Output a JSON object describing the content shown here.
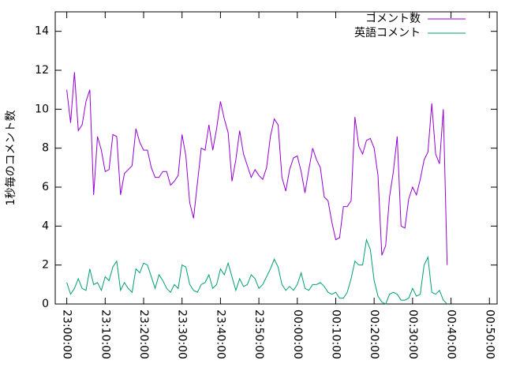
{
  "chart_data": {
    "type": "line",
    "ylabel": "1秒毎のコメント数",
    "x": [
      "23:00:00",
      "23:01:00",
      "23:02:00",
      "23:03:00",
      "23:04:00",
      "23:05:00",
      "23:06:00",
      "23:07:00",
      "23:08:00",
      "23:09:00",
      "23:10:00",
      "23:11:00",
      "23:12:00",
      "23:13:00",
      "23:14:00",
      "23:15:00",
      "23:16:00",
      "23:17:00",
      "23:18:00",
      "23:19:00",
      "23:20:00",
      "23:21:00",
      "23:22:00",
      "23:23:00",
      "23:24:00",
      "23:25:00",
      "23:26:00",
      "23:27:00",
      "23:28:00",
      "23:29:00",
      "23:30:00",
      "23:31:00",
      "23:32:00",
      "23:33:00",
      "23:34:00",
      "23:35:00",
      "23:36:00",
      "23:37:00",
      "23:38:00",
      "23:39:00",
      "23:40:00",
      "23:41:00",
      "23:42:00",
      "23:43:00",
      "23:44:00",
      "23:45:00",
      "23:46:00",
      "23:47:00",
      "23:48:00",
      "23:49:00",
      "23:50:00",
      "23:51:00",
      "23:52:00",
      "23:53:00",
      "23:54:00",
      "23:55:00",
      "23:56:00",
      "23:57:00",
      "23:58:00",
      "23:59:00",
      "00:00:00",
      "00:01:00",
      "00:02:00",
      "00:03:00",
      "00:04:00",
      "00:05:00",
      "00:06:00",
      "00:07:00",
      "00:08:00",
      "00:09:00",
      "00:10:00",
      "00:11:00",
      "00:12:00",
      "00:13:00",
      "00:14:00",
      "00:15:00",
      "00:16:00",
      "00:17:00",
      "00:18:00",
      "00:19:00",
      "00:20:00",
      "00:21:00",
      "00:22:00",
      "00:23:00",
      "00:24:00",
      "00:25:00",
      "00:26:00",
      "00:27:00",
      "00:28:00",
      "00:29:00",
      "00:30:00",
      "00:31:00",
      "00:32:00",
      "00:33:00",
      "00:34:00",
      "00:35:00",
      "00:36:00",
      "00:37:00",
      "00:38:00",
      "00:39:00"
    ],
    "series": [
      {
        "name": "コメント数",
        "color": "#9400d3",
        "values": [
          11,
          9.3,
          11.9,
          8.9,
          9.2,
          10.4,
          11,
          5.6,
          8.6,
          7.9,
          6.8,
          6.9,
          8.7,
          8.6,
          5.6,
          6.7,
          6.9,
          7.1,
          9.0,
          8.3,
          7.9,
          7.9,
          7.0,
          6.5,
          6.5,
          6.8,
          6.8,
          6.1,
          6.3,
          6.6,
          8.7,
          7.6,
          5.2,
          4.4,
          6.2,
          8.0,
          7.9,
          9.2,
          7.9,
          9.0,
          10.4,
          9.5,
          8.8,
          6.3,
          7.4,
          8.9,
          7.7,
          7.1,
          6.5,
          6.9,
          6.6,
          6.4,
          7.0,
          8.6,
          9.5,
          9.2,
          6.5,
          5.8,
          6.9,
          7.5,
          7.6,
          6.8,
          5.7,
          6.9,
          8.0,
          7.4,
          7.0,
          5.5,
          5.3,
          4.2,
          3.3,
          3.4,
          5.0,
          5.0,
          5.3,
          9.6,
          8.1,
          7.7,
          8.4,
          8.5,
          8.0,
          6.6,
          2.5,
          3.0,
          5.5,
          6.8,
          8.6,
          4.0,
          3.9,
          5.4,
          6.0,
          5.6,
          6.4,
          7.4,
          7.8,
          10.3,
          7.7,
          7.2,
          10.0,
          2.0
        ]
      },
      {
        "name": "英語コメント",
        "color": "#009e73",
        "values": [
          1.1,
          0.5,
          0.8,
          1.3,
          0.8,
          0.7,
          1.8,
          1.0,
          1.1,
          0.7,
          1.4,
          1.2,
          1.9,
          2.2,
          0.7,
          1.1,
          0.8,
          0.6,
          1.8,
          1.6,
          2.1,
          2.0,
          1.4,
          0.8,
          1.5,
          1.2,
          0.8,
          0.6,
          1.0,
          0.8,
          2.0,
          1.9,
          1.0,
          0.7,
          0.6,
          1.0,
          1.1,
          1.5,
          0.8,
          1.0,
          1.8,
          1.5,
          2.1,
          1.4,
          0.7,
          1.3,
          0.9,
          1.0,
          1.5,
          1.3,
          0.8,
          1.0,
          1.4,
          1.8,
          2.3,
          1.9,
          1.0,
          0.7,
          0.9,
          0.7,
          1.0,
          1.6,
          0.8,
          0.7,
          1.0,
          1.0,
          1.1,
          0.9,
          0.6,
          0.5,
          0.6,
          0.3,
          0.3,
          0.6,
          1.3,
          2.2,
          2.0,
          2.0,
          3.3,
          2.8,
          1.2,
          0.4,
          0.1,
          0.0,
          0.5,
          0.6,
          0.5,
          0.2,
          0.2,
          0.3,
          0.8,
          0.4,
          0.5,
          2.0,
          2.4,
          0.6,
          0.5,
          0.7,
          0.2,
          0.0
        ]
      }
    ],
    "xlim": [
      "22:57:00",
      "00:52:00"
    ],
    "xticks": [
      "23:00:00",
      "23:10:00",
      "23:20:00",
      "23:30:00",
      "23:40:00",
      "23:50:00",
      "00:00:00",
      "00:10:00",
      "00:20:00",
      "00:30:00",
      "00:40:00",
      "00:50:00"
    ],
    "ylim": [
      0,
      15
    ],
    "yticks": [
      0,
      2,
      4,
      6,
      8,
      10,
      12,
      14
    ],
    "legend": "top-right"
  }
}
